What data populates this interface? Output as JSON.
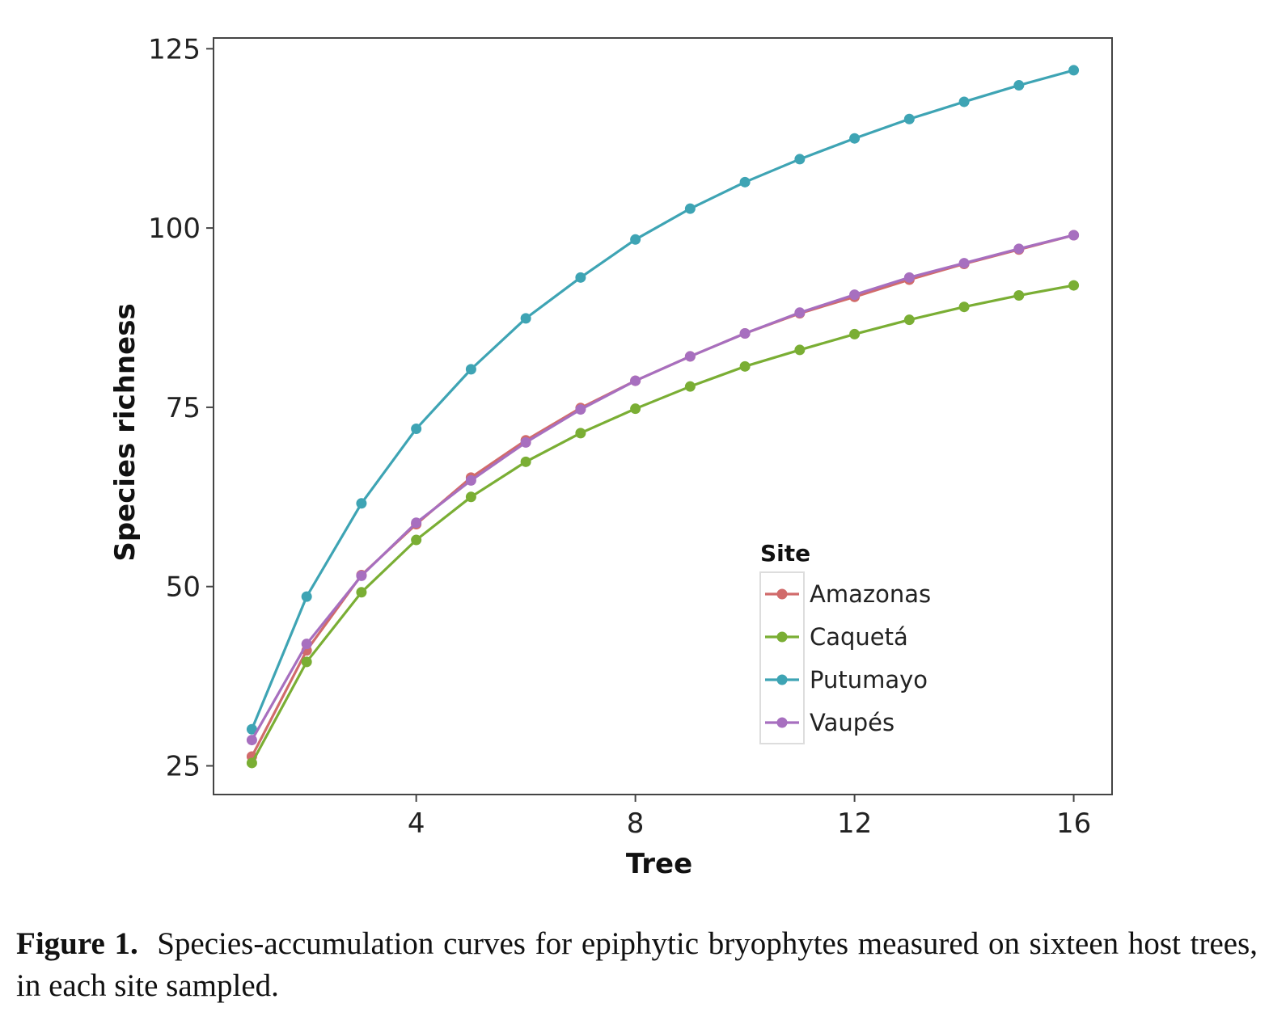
{
  "chart_data": {
    "type": "line",
    "xlabel": "Tree",
    "ylabel": "Species richness",
    "xlim": [
      0.3,
      16.7
    ],
    "ylim": [
      21,
      126.5
    ],
    "xticks": [
      4,
      8,
      12,
      16
    ],
    "yticks": [
      25,
      50,
      75,
      100,
      125
    ],
    "grid": false,
    "legend": {
      "title": "Site",
      "placement": "bottom-right-inside"
    },
    "x": [
      1,
      2,
      3,
      4,
      5,
      6,
      7,
      8,
      9,
      10,
      11,
      12,
      13,
      14,
      15,
      16
    ],
    "series": [
      {
        "name": "Amazonas",
        "color": "#d16b6b",
        "values": [
          26.3,
          41.1,
          51.6,
          58.7,
          65.2,
          70.4,
          74.9,
          78.7,
          82.1,
          85.3,
          88.1,
          90.4,
          92.8,
          95.0,
          97.0,
          99.0
        ]
      },
      {
        "name": "Caquetá",
        "color": "#7aae34",
        "values": [
          25.4,
          39.5,
          49.2,
          56.5,
          62.5,
          67.4,
          71.4,
          74.8,
          77.9,
          80.7,
          83.0,
          85.2,
          87.2,
          89.0,
          90.6,
          92.0
        ]
      },
      {
        "name": "Putumayo",
        "color": "#3ea4b4",
        "values": [
          30.1,
          48.6,
          61.6,
          72.0,
          80.3,
          87.4,
          93.1,
          98.4,
          102.7,
          106.4,
          109.6,
          112.5,
          115.2,
          117.6,
          119.9,
          122.0
        ]
      },
      {
        "name": "Vaupés",
        "color": "#a76fbf",
        "values": [
          28.6,
          42.0,
          51.5,
          58.9,
          64.8,
          70.1,
          74.7,
          78.7,
          82.1,
          85.3,
          88.2,
          90.7,
          93.1,
          95.1,
          97.1,
          99.0
        ]
      }
    ]
  },
  "caption": {
    "label": "Figure 1.",
    "text": "Species-accumulation curves for epiphytic bryophytes measured on sixteen host trees, in each site sampled."
  }
}
